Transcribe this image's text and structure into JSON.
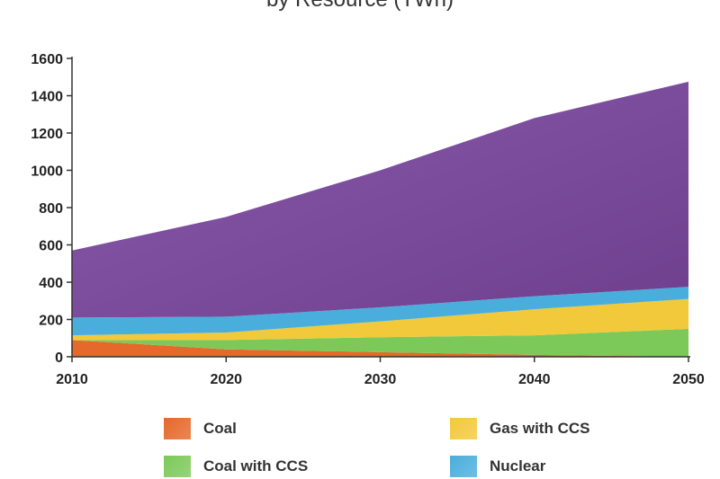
{
  "chart_data": {
    "type": "area",
    "stacked": true,
    "title": "by Resource (TWh)",
    "x": [
      2010,
      2020,
      2030,
      2040,
      2050
    ],
    "ylim": [
      0,
      1600
    ],
    "yticks": [
      0,
      200,
      400,
      600,
      800,
      1000,
      1200,
      1400,
      1600
    ],
    "xticks": [
      "2010",
      "2020",
      "2030",
      "2040",
      "2050"
    ],
    "grid": false,
    "legend_position": "bottom",
    "series": [
      {
        "name": "Coal",
        "color": "#e4692a",
        "values": [
          90,
          40,
          25,
          10,
          0
        ]
      },
      {
        "name": "Coal with CCS",
        "color": "#7cc95a",
        "values": [
          0,
          50,
          80,
          105,
          150
        ]
      },
      {
        "name": "Gas with CCS",
        "color": "#f2c93a",
        "values": [
          25,
          40,
          85,
          140,
          160
        ]
      },
      {
        "name": "Nuclear",
        "color": "#4aaedc",
        "values": [
          95,
          85,
          75,
          70,
          65
        ]
      },
      {
        "name": "",
        "color": "#7d4c9a",
        "values": [
          360,
          535,
          735,
          955,
          1100
        ]
      }
    ],
    "legend": [
      {
        "label": "Coal",
        "color": "#e4692a"
      },
      {
        "label": "Gas with CCS",
        "color": "#f2c93a"
      },
      {
        "label": "Coal with CCS",
        "color": "#7cc95a"
      },
      {
        "label": "Nuclear",
        "color": "#4aaedc"
      }
    ]
  }
}
